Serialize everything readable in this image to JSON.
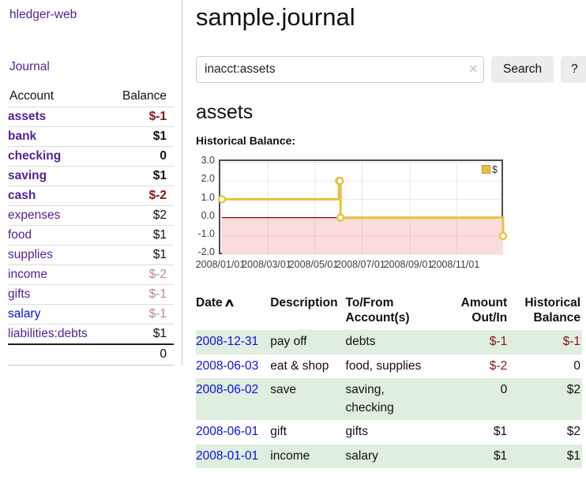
{
  "theme": {
    "link_purple": "#552299",
    "link_blue": "#0e0ee8",
    "negative_dark": "#841617",
    "negative_light": "#bd8a8a",
    "row_stripe_green": "#dfeedf",
    "chart_line_gold": "#e9c03c",
    "chart_negative_pink": "#fbdcdc",
    "chart_zero_line": "#8b0000",
    "chart_border": "#4d4d4d",
    "button_bg": "#ededed"
  },
  "sidebar": {
    "brand": "hledger-web",
    "journal_link": "Journal",
    "columns": [
      "Account",
      "Balance"
    ],
    "accounts": [
      {
        "name": "assets",
        "balance": "$-1",
        "depth": 1,
        "bold": true,
        "name_color": "purple",
        "balance_color": "dark-red"
      },
      {
        "name": "bank",
        "balance": "$1",
        "depth": 2,
        "bold": true,
        "name_color": "purple",
        "balance_color": "default"
      },
      {
        "name": "checking",
        "balance": "0",
        "depth": 3,
        "bold": true,
        "name_color": "purple",
        "balance_color": "default"
      },
      {
        "name": "saving",
        "balance": "$1",
        "depth": 3,
        "bold": true,
        "name_color": "purple",
        "balance_color": "default"
      },
      {
        "name": "cash",
        "balance": "$-2",
        "depth": 2,
        "bold": true,
        "name_color": "purple",
        "balance_color": "dark-red"
      },
      {
        "name": "expenses",
        "balance": "$2",
        "depth": 1,
        "bold": false,
        "name_color": "purple",
        "balance_color": "default"
      },
      {
        "name": "food",
        "balance": "$1",
        "depth": 2,
        "bold": false,
        "name_color": "purple",
        "balance_color": "default"
      },
      {
        "name": "supplies",
        "balance": "$1",
        "depth": 2,
        "bold": false,
        "name_color": "purple",
        "balance_color": "default"
      },
      {
        "name": "income",
        "balance": "$-2",
        "depth": 1,
        "bold": false,
        "name_color": "purple",
        "balance_color": "light-red"
      },
      {
        "name": "gifts",
        "balance": "$-1",
        "depth": 2,
        "bold": false,
        "name_color": "purple",
        "balance_color": "light-red"
      },
      {
        "name": "salary",
        "balance": "$-1",
        "depth": 2,
        "bold": false,
        "name_color": "blue",
        "balance_color": "light-red"
      },
      {
        "name": "liabilities:debts",
        "balance": "$1",
        "depth": 1,
        "bold": false,
        "name_color": "purple",
        "balance_color": "default"
      }
    ],
    "total": "0"
  },
  "header": {
    "title": "sample.journal"
  },
  "search": {
    "value": "inacct:assets",
    "clear_icon": "✕",
    "button_label": "Search",
    "help_label": "?"
  },
  "account": {
    "heading": "assets",
    "chart_label": "Historical Balance:"
  },
  "chart_data": {
    "type": "line",
    "title": "Historical Balance",
    "step": true,
    "x_type": "date",
    "xlim": [
      "2008-01-01",
      "2008-12-31"
    ],
    "ylim": [
      -2,
      3
    ],
    "series": [
      {
        "name": "$",
        "points": [
          [
            "2008-01-01",
            1
          ],
          [
            "2008-06-01",
            2
          ],
          [
            "2008-06-02",
            2
          ],
          [
            "2008-06-03",
            0
          ],
          [
            "2008-12-31",
            -1
          ]
        ]
      }
    ],
    "yticks": [
      {
        "label": "3.0",
        "value": 3
      },
      {
        "label": "2.0",
        "value": 2
      },
      {
        "label": "1.0",
        "value": 1
      },
      {
        "label": "0.0",
        "value": 0
      },
      {
        "label": "-1.0",
        "value": -1
      },
      {
        "label": "-2.0",
        "value": -2
      }
    ],
    "xticks": [
      {
        "label": "2008/01/01",
        "date": "2008-01-01"
      },
      {
        "label": "2008/03/01",
        "date": "2008-03-01"
      },
      {
        "label": "2008/05/01",
        "date": "2008-05-01"
      },
      {
        "label": "2008/07/01",
        "date": "2008-07-01"
      },
      {
        "label": "2008/09/01",
        "date": "2008-09-01"
      },
      {
        "label": "2008/11/01",
        "date": "2008-11-01"
      }
    ],
    "legend": {
      "position": "top-right",
      "label": "$"
    },
    "grid": true
  },
  "register": {
    "columns": [
      "Date",
      "Description",
      "To/From Account(s)",
      "Amount Out/In",
      "Historical Balance"
    ],
    "sort_indicator": "∧",
    "rows": [
      {
        "date": "2008-12-31",
        "description": "pay off",
        "accounts": "debts",
        "amount": "$-1",
        "amount_color": "dark-red",
        "balance": "$-1",
        "balance_color": "dark-red"
      },
      {
        "date": "2008-06-03",
        "description": "eat & shop",
        "accounts": "food, supplies",
        "amount": "$-2",
        "amount_color": "dark-red",
        "balance": "0",
        "balance_color": "default"
      },
      {
        "date": "2008-06-02",
        "description": "save",
        "accounts": "saving, checking",
        "amount": "0",
        "amount_color": "default",
        "balance": "$2",
        "balance_color": "default"
      },
      {
        "date": "2008-06-01",
        "description": "gift",
        "accounts": "gifts",
        "amount": "$1",
        "amount_color": "default",
        "balance": "$2",
        "balance_color": "default"
      },
      {
        "date": "2008-01-01",
        "description": "income",
        "accounts": "salary",
        "amount": "$1",
        "amount_color": "default",
        "balance": "$1",
        "balance_color": "default"
      }
    ]
  }
}
